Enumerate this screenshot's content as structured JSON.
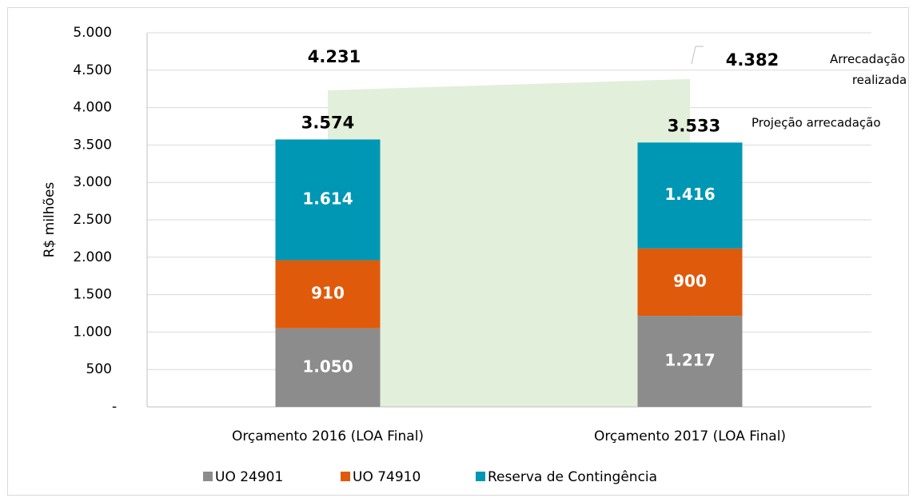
{
  "chart_data": {
    "type": "stacked_bar",
    "y_label": "R$ milhões",
    "categories": [
      "Orçamento 2016 (LOA Final)",
      "Orçamento 2017 (LOA Final)"
    ],
    "series": [
      {
        "name": "UO 24901",
        "color": "#8c8c8c",
        "values": [
          1050,
          1217
        ],
        "value_labels": [
          "1.050",
          "1.217"
        ]
      },
      {
        "name": "UO 74910",
        "color": "#e05a0c",
        "values": [
          910,
          900
        ],
        "value_labels": [
          "910",
          "900"
        ]
      },
      {
        "name": "Reserva de Contingência",
        "color": "#0097b5",
        "values": [
          1614,
          1416
        ],
        "value_labels": [
          "1.614",
          "1.416"
        ]
      }
    ],
    "totals": {
      "name": "Projeção arrecadação",
      "values": [
        3574,
        3533
      ],
      "value_labels": [
        "3.574",
        "3.533"
      ]
    },
    "area": {
      "name": "Arrecadação realizada",
      "color": "#e2efda",
      "values": [
        4231,
        4382
      ],
      "value_labels": [
        "4.231",
        "4.382"
      ]
    },
    "ylim": [
      0,
      5000
    ],
    "yticks": [
      {
        "value": 0,
        "label": "-"
      },
      500,
      {
        "value": 1000,
        "label": "1.000"
      },
      {
        "value": 1500,
        "label": "1.500"
      },
      {
        "value": 2000,
        "label": "2.000"
      },
      {
        "value": 2500,
        "label": "2.500"
      },
      {
        "value": 3000,
        "label": "3.000"
      },
      {
        "value": 3500,
        "label": "3.500"
      },
      {
        "value": 4000,
        "label": "4.000"
      },
      {
        "value": 4500,
        "label": "4.500"
      },
      {
        "value": 5000,
        "label": "5.000"
      }
    ],
    "grid": true,
    "legend": "bottom"
  }
}
